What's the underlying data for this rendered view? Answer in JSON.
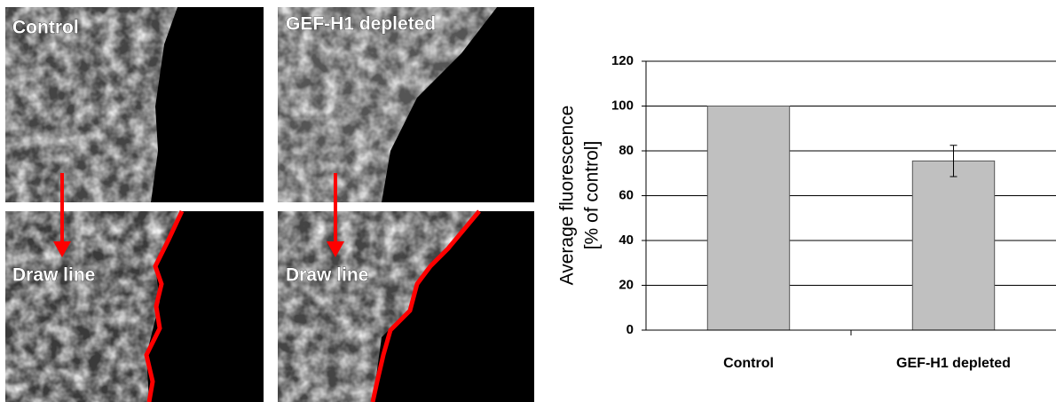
{
  "panels": [
    {
      "label": "Control"
    },
    {
      "label": "GEF-H1 depleted"
    },
    {
      "label": "Draw line"
    },
    {
      "label": "Draw line"
    }
  ],
  "chart_data": {
    "type": "bar",
    "ylabel": [
      "Average fluorescence",
      "[% of control]"
    ],
    "categories": [
      "Control",
      "GEF-H1 depleted"
    ],
    "values": [
      100,
      75.5
    ],
    "errors": [
      null,
      7
    ],
    "color": "#c0c0c0",
    "ylim": [
      0,
      120
    ],
    "yticks": [
      0,
      20,
      40,
      60,
      80,
      100,
      120
    ],
    "grid": true
  }
}
